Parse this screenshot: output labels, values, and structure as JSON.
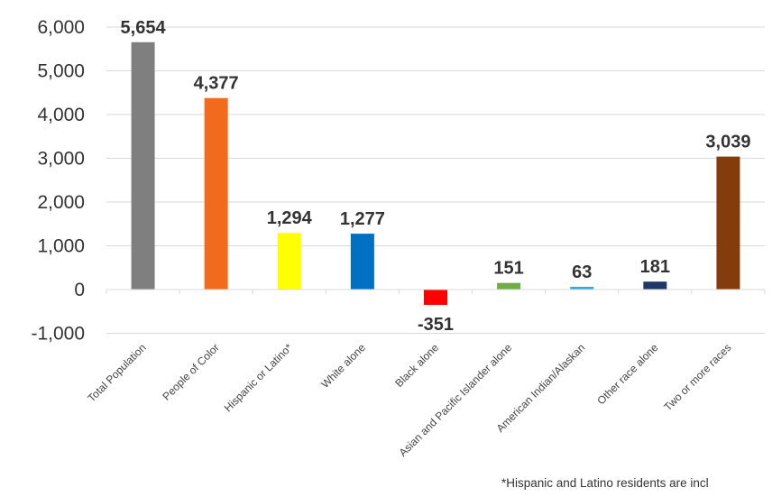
{
  "chart_data": {
    "type": "bar",
    "title": "",
    "xlabel": "",
    "ylabel": "",
    "ylim": [
      -1000,
      6000
    ],
    "yticks": [
      -1000,
      0,
      1000,
      2000,
      3000,
      4000,
      5000,
      6000
    ],
    "ytick_labels": [
      "-1,000",
      "0",
      "1,000",
      "2,000",
      "3,000",
      "4,000",
      "5,000",
      "6,000"
    ],
    "grid": true,
    "categories": [
      "Total Population",
      "People of Color",
      "Hispanic or Latino*",
      "White alone",
      "Black alone",
      "Asian and Pacific Islander alone",
      "American Indian/Alaskan",
      "Other race alone",
      "Two or more races"
    ],
    "values": [
      5654,
      4377,
      1294,
      1277,
      -351,
      151,
      63,
      181,
      3039
    ],
    "data_labels": [
      "5,654",
      "4,377",
      "1,294",
      "1,277",
      "-351",
      "151",
      "63",
      "181",
      "3,039"
    ],
    "colors": [
      "#7f7f7f",
      "#f26b1d",
      "#ffff00",
      "#0070c0",
      "#ff0000",
      "#70ad47",
      "#2fa8e0",
      "#1f3864",
      "#843c0c"
    ]
  },
  "footnote": "*Hispanic and Latino residents are incl"
}
